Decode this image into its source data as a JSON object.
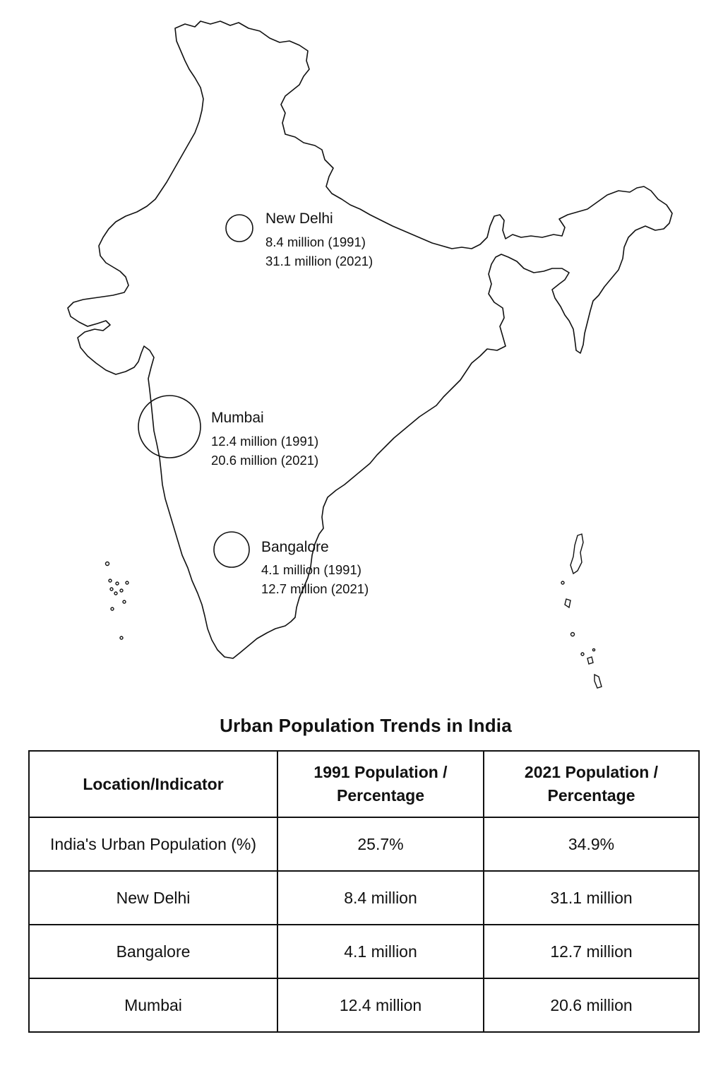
{
  "map": {
    "cities": [
      {
        "name": "New Delhi",
        "pop_1991": "8.4 million (1991)",
        "pop_2021": "31.1 million (2021)",
        "population_2021_million": 31.1
      },
      {
        "name": "Mumbai",
        "pop_1991": "12.4 million (1991)",
        "pop_2021": "20.6 million (2021)",
        "population_2021_million": 20.6
      },
      {
        "name": "Bangalore",
        "pop_1991": "4.1 million (1991)",
        "pop_2021": "12.7 million (2021)",
        "population_2021_million": 12.7
      }
    ]
  },
  "table": {
    "title": "Urban Population Trends in India",
    "headers": [
      "Location/Indicator",
      "1991 Population / Percentage",
      "2021 Population / Percentage"
    ],
    "rows": [
      [
        "India's Urban Population (%)",
        "25.7%",
        "34.9%"
      ],
      [
        "New Delhi",
        "8.4 million",
        "31.1 million"
      ],
      [
        "Bangalore",
        "4.1 million",
        "12.7 million"
      ],
      [
        "Mumbai",
        "12.4 million",
        "20.6 million"
      ]
    ]
  }
}
